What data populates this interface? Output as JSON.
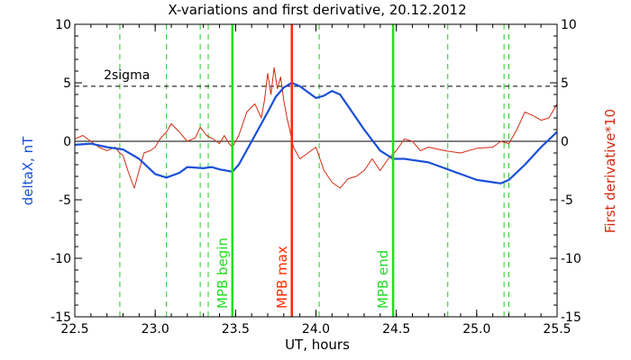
{
  "chart_data": {
    "type": "line",
    "title": "X-variations and first derivative, 20.12.2012",
    "xlabel": "UT, hours",
    "ylabel_left": "deltaX, nT",
    "ylabel_right": "First derivative*10",
    "xlim": [
      22.5,
      25.5
    ],
    "ylim": [
      -15,
      10
    ],
    "x_ticks": [
      "22.5",
      "23.0",
      "23.5",
      "24.0",
      "24.5",
      "25.0",
      "25.5"
    ],
    "y_ticks": [
      "10",
      "5",
      "0",
      "-5",
      "-10",
      "-15"
    ],
    "y_ticks_right": [
      "10",
      "5",
      "0",
      "-5",
      "-10",
      "-15"
    ],
    "grid": false,
    "colors": {
      "deltaX": "#1a4fd6",
      "derivative": "#d22a10",
      "mpb_boundary": "#22dd22",
      "mpb_max": "#ff2a00",
      "dashed_green": "#22cc22",
      "axis": "#000000"
    },
    "sigma_line": {
      "y": 4.7,
      "label": "2sigma"
    },
    "zero_line": 0,
    "vlines_dashed": [
      22.78,
      23.07,
      23.28,
      23.33,
      24.02,
      24.82,
      25.17,
      25.2
    ],
    "vlines_solid": [
      {
        "x": 23.48,
        "label": "MPB begin",
        "kind": "boundary"
      },
      {
        "x": 23.85,
        "label": "MPB max",
        "kind": "max"
      },
      {
        "x": 24.48,
        "label": "MPB end",
        "kind": "boundary"
      }
    ],
    "series": [
      {
        "name": "deltaX",
        "x": [
          22.5,
          22.6,
          22.7,
          22.8,
          22.9,
          23.0,
          23.07,
          23.15,
          23.2,
          23.3,
          23.35,
          23.4,
          23.48,
          23.52,
          23.6,
          23.7,
          23.75,
          23.8,
          23.85,
          23.9,
          23.95,
          24.0,
          24.05,
          24.1,
          24.15,
          24.2,
          24.3,
          24.4,
          24.48,
          24.55,
          24.6,
          24.7,
          24.8,
          24.9,
          25.0,
          25.1,
          25.15,
          25.2,
          25.3,
          25.4,
          25.5
        ],
        "y": [
          -0.3,
          -0.2,
          -0.5,
          -0.7,
          -1.5,
          -2.8,
          -3.1,
          -2.7,
          -2.2,
          -2.3,
          -2.2,
          -2.4,
          -2.6,
          -2.0,
          0.0,
          2.5,
          3.8,
          4.6,
          5.0,
          4.7,
          4.2,
          3.7,
          3.9,
          4.3,
          4.0,
          3.0,
          1.0,
          -0.8,
          -1.5,
          -1.5,
          -1.6,
          -1.8,
          -2.3,
          -2.8,
          -3.3,
          -3.5,
          -3.6,
          -3.3,
          -2.0,
          -0.5,
          0.8
        ]
      },
      {
        "name": "First derivative*10",
        "x": [
          22.5,
          22.55,
          22.6,
          22.65,
          22.7,
          22.75,
          22.78,
          22.8,
          22.83,
          22.87,
          22.9,
          22.93,
          22.97,
          23.0,
          23.03,
          23.07,
          23.1,
          23.15,
          23.2,
          23.25,
          23.28,
          23.32,
          23.36,
          23.4,
          23.43,
          23.46,
          23.48,
          23.52,
          23.57,
          23.62,
          23.66,
          23.68,
          23.7,
          23.72,
          23.74,
          23.76,
          23.78,
          23.8,
          23.82,
          23.84,
          23.86,
          23.9,
          23.95,
          24.0,
          24.05,
          24.1,
          24.15,
          24.2,
          24.25,
          24.3,
          24.35,
          24.4,
          24.45,
          24.5,
          24.55,
          24.6,
          24.65,
          24.7,
          24.8,
          24.9,
          25.0,
          25.1,
          25.15,
          25.2,
          25.25,
          25.3,
          25.35,
          25.4,
          25.45,
          25.5
        ],
        "y": [
          0.2,
          0.5,
          0.0,
          -0.5,
          -0.8,
          -0.5,
          -1.0,
          -1.2,
          -2.5,
          -4.0,
          -2.5,
          -1.0,
          -0.8,
          -0.5,
          0.2,
          0.8,
          1.5,
          0.8,
          0.0,
          0.3,
          1.2,
          0.5,
          0.2,
          -0.2,
          0.5,
          -0.2,
          -0.5,
          0.5,
          2.5,
          3.2,
          2.0,
          3.5,
          5.8,
          4.0,
          6.3,
          4.5,
          5.5,
          3.5,
          2.0,
          0.8,
          -0.5,
          -1.5,
          -1.0,
          -0.5,
          -2.5,
          -3.5,
          -4.0,
          -3.2,
          -3.0,
          -2.5,
          -1.5,
          -2.5,
          -1.5,
          -0.8,
          0.2,
          0.0,
          -0.8,
          -0.5,
          -0.8,
          -1.0,
          -0.6,
          -0.5,
          0.0,
          -0.2,
          1.0,
          2.5,
          2.2,
          1.8,
          2.0,
          3.2
        ]
      }
    ]
  }
}
